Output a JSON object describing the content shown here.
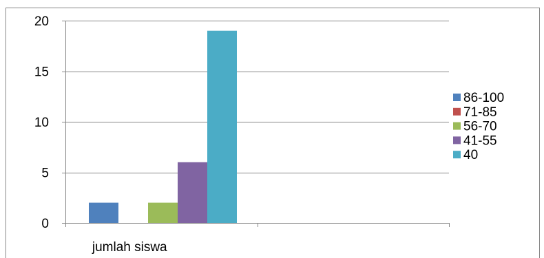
{
  "chart_data": {
    "type": "bar",
    "categories": [
      "jumlah siswa",
      ""
    ],
    "series": [
      {
        "name": "86-100",
        "values": [
          2,
          null
        ],
        "color": "#4F81BD"
      },
      {
        "name": "71-85",
        "values": [
          0,
          null
        ],
        "color": "#C0504D"
      },
      {
        "name": "56-70",
        "values": [
          2,
          null
        ],
        "color": "#9BBB59"
      },
      {
        "name": "41-55",
        "values": [
          6,
          null
        ],
        "color": "#8064A2"
      },
      {
        "name": "40",
        "values": [
          19,
          null
        ],
        "color": "#4BACC6"
      }
    ],
    "yticks": [
      "0",
      "5",
      "10",
      "15",
      "20"
    ],
    "ylim": [
      0,
      20
    ],
    "grid": true,
    "legend_position": "right",
    "colors": {
      "gridline": "#868686",
      "axis": "#868686",
      "border": "#868686"
    }
  }
}
